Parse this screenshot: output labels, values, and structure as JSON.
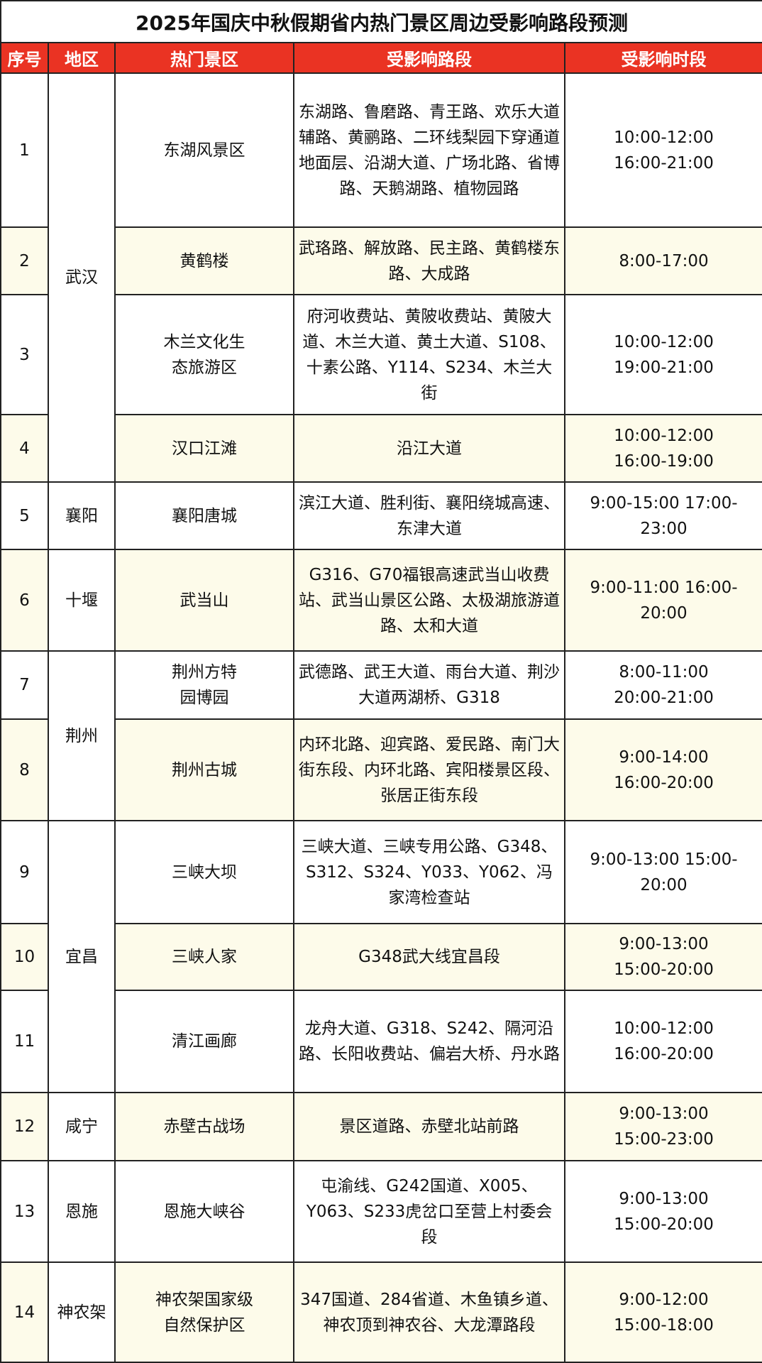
{
  "title": "2025年国庆中秋假期省内热门景区周边受影响路段预测",
  "colors": {
    "header_bg": "#ea3323",
    "alt_row_bg": "#fdfbea"
  },
  "columns": [
    "序号",
    "地区",
    "热门景区",
    "受影响路段",
    "受影响时段"
  ],
  "rows": [
    {
      "no": "1",
      "region": "武汉",
      "region_span": 4,
      "spot": "东湖风景区",
      "roads": "东湖路、鲁磨路、青王路、欢乐大道辅路、黄鹂路、二环线梨园下穿通道地面层、沿湖大道、广场北路、省博路、天鹅湖路、植物园路",
      "times": [
        "10:00-12:00",
        "16:00-21:00"
      ]
    },
    {
      "no": "2",
      "spot": "黄鹤楼",
      "roads": "武珞路、解放路、民主路、黄鹤楼东路、大成路",
      "times": [
        "8:00-17:00"
      ]
    },
    {
      "no": "3",
      "spot": "木兰文化生态旅游区",
      "roads": "府河收费站、黄陂收费站、黄陂大道、木兰大道、黄土大道、S108、十素公路、Y114、S234、木兰大街",
      "times": [
        "10:00-12:00",
        "19:00-21:00"
      ]
    },
    {
      "no": "4",
      "spot": "汉口江滩",
      "roads": "沿江大道",
      "times": [
        "10:00-12:00",
        "16:00-19:00"
      ]
    },
    {
      "no": "5",
      "region": "襄阳",
      "region_span": 1,
      "spot": "襄阳唐城",
      "roads": "滨江大道、胜利街、襄阳绕城高速、东津大道",
      "times": [
        "9:00-15:00 17:00-23:00"
      ]
    },
    {
      "no": "6",
      "region": "十堰",
      "region_span": 1,
      "spot": "武当山",
      "roads": "G316、G70福银高速武当山收费站、武当山景区公路、太极湖旅游道路、太和大道",
      "times": [
        "9:00-11:00 16:00-20:00"
      ]
    },
    {
      "no": "7",
      "region": "荆州",
      "region_span": 2,
      "spot": "荆州方特园博园",
      "roads": "武德路、武王大道、雨台大道、荆沙大道两湖桥、G318",
      "times": [
        "8:00-11:00",
        "20:00-21:00"
      ]
    },
    {
      "no": "8",
      "spot": "荆州古城",
      "roads": "内环北路、迎宾路、爱民路、南门大街东段、内环北路、宾阳楼景区段、张居正街东段",
      "times": [
        "9:00-14:00",
        "16:00-20:00"
      ]
    },
    {
      "no": "9",
      "region": "宜昌",
      "region_span": 3,
      "spot": "三峡大坝",
      "roads": "三峡大道、三峡专用公路、G348、S312、S324、Y033、Y062、冯家湾检查站",
      "times": [
        "9:00-13:00 15:00-20:00"
      ]
    },
    {
      "no": "10",
      "spot": "三峡人家",
      "roads": "G348武大线宜昌段",
      "times": [
        "9:00-13:00",
        "15:00-20:00"
      ]
    },
    {
      "no": "11",
      "spot": "清江画廊",
      "roads": "龙舟大道、G318、S242、隔河沿路、长阳收费站、偏岩大桥、丹水路",
      "times": [
        "10:00-12:00",
        "16:00-20:00"
      ]
    },
    {
      "no": "12",
      "region": "咸宁",
      "region_span": 1,
      "spot": "赤壁古战场",
      "roads": "景区道路、赤壁北站前路",
      "times": [
        "9:00-13:00",
        "15:00-23:00"
      ]
    },
    {
      "no": "13",
      "region": "恩施",
      "region_span": 1,
      "spot": "恩施大峡谷",
      "roads": "屯渝线、G242国道、X005、Y063、S233虎岔口至营上村委会段",
      "times": [
        "9:00-13:00",
        "15:00-20:00"
      ]
    },
    {
      "no": "14",
      "region": "神农架",
      "region_span": 1,
      "spot": "神农架国家级自然保护区",
      "roads": "347国道、284省道、木鱼镇乡道、神农顶到神农谷、大龙潭路段",
      "times": [
        "9:00-12:00",
        "15:00-18:00"
      ]
    }
  ]
}
